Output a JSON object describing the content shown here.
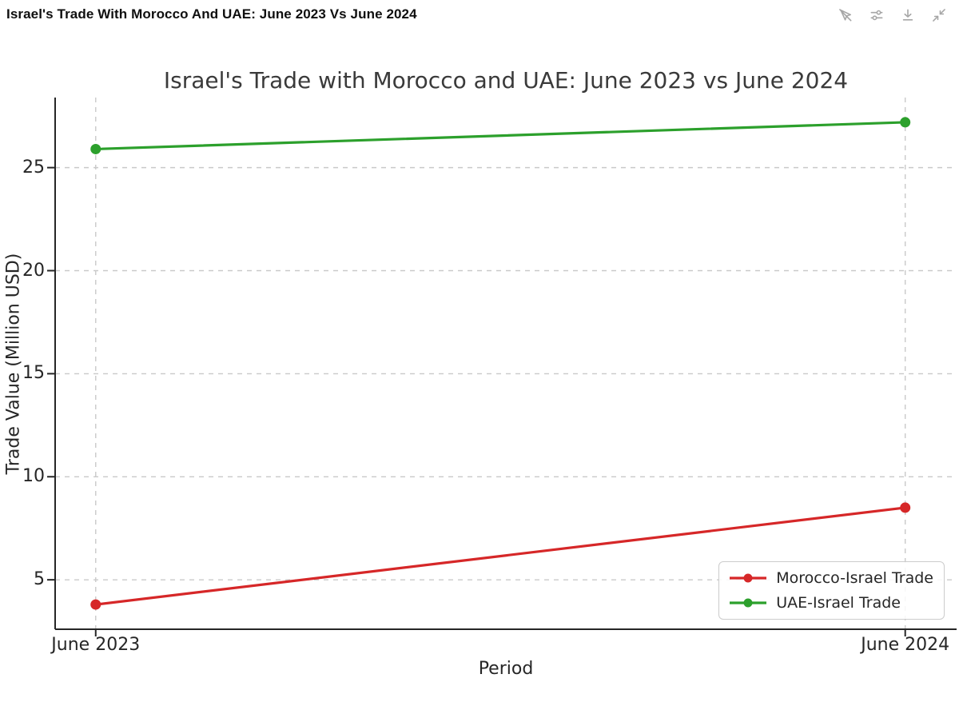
{
  "header": {
    "title": "Israel's Trade With Morocco And UAE: June 2023 Vs June 2024",
    "toolbar_icons": [
      "cursor-interactivity-off-icon",
      "settings-sliders-icon",
      "download-icon",
      "collapse-fullscreen-icon"
    ]
  },
  "chart_data": {
    "type": "line",
    "title": "Israel's Trade with Morocco and UAE: June 2023 vs June 2024",
    "categories": [
      "June 2023",
      "June 2024"
    ],
    "series": [
      {
        "name": "Morocco-Israel Trade",
        "values": [
          3.8,
          8.5
        ],
        "color": "#d62728"
      },
      {
        "name": "UAE-Israel Trade",
        "values": [
          25.9,
          27.2
        ],
        "color": "#2ca02c"
      }
    ],
    "xlabel": "Period",
    "ylabel": "Trade Value (Million USD)",
    "yticks": [
      5,
      10,
      15,
      20,
      25
    ],
    "ylim": [
      2.6,
      28.4
    ],
    "grid": true,
    "grid_linestyle": "dashed",
    "marker": "circle",
    "legend_position": "lower right"
  },
  "style": {
    "background": "#ffffff",
    "grid_color": "#c9c9c9",
    "spine_color": "#262626",
    "tick_color": "#262626",
    "title_color": "#3a3a3a",
    "icon_color": "#a6a6a6",
    "legend_border": "#cccccc",
    "line_width": 3.2,
    "marker_radius": 6.5
  }
}
